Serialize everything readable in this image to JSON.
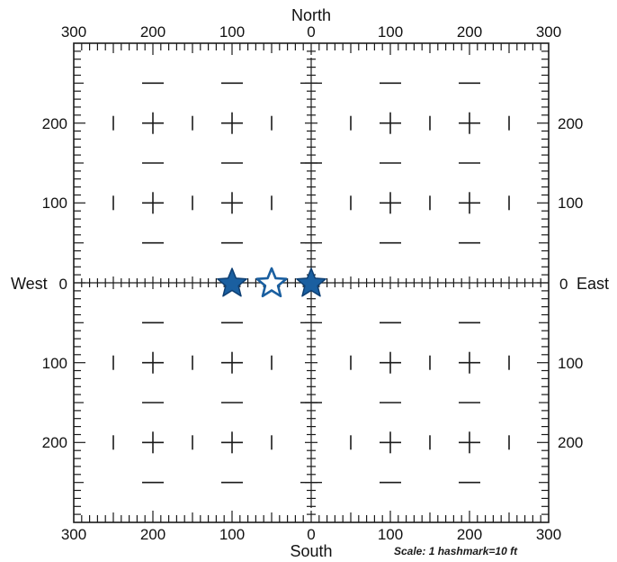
{
  "directions": {
    "north": "North",
    "south": "South",
    "west": "West",
    "east": "East"
  },
  "scale_text": "Scale:  1 hashmark=10 ft",
  "horizontal_ticks": [
    "300",
    "200",
    "100",
    "0",
    "100",
    "200",
    "300"
  ],
  "vertical_ticks": [
    "200",
    "100",
    "0",
    "100",
    "200"
  ],
  "chart_data": {
    "type": "scatter",
    "x_range": [
      -300,
      300
    ],
    "y_range": [
      -300,
      300
    ],
    "units": "ft",
    "hashmark_spacing_ft": 10,
    "major_grid_ft": 100,
    "grid": true,
    "series": [
      {
        "points": [
          {
            "x": -100,
            "y": 0,
            "style": "filled"
          },
          {
            "x": -50,
            "y": 0,
            "style": "outline"
          },
          {
            "x": 0,
            "y": 0,
            "style": "filled"
          }
        ]
      }
    ]
  },
  "colors": {
    "star_fill": "#1a5fa0",
    "star_stroke": "#0d3f73",
    "line": "#1a1a1a",
    "background": "#ffffff"
  }
}
